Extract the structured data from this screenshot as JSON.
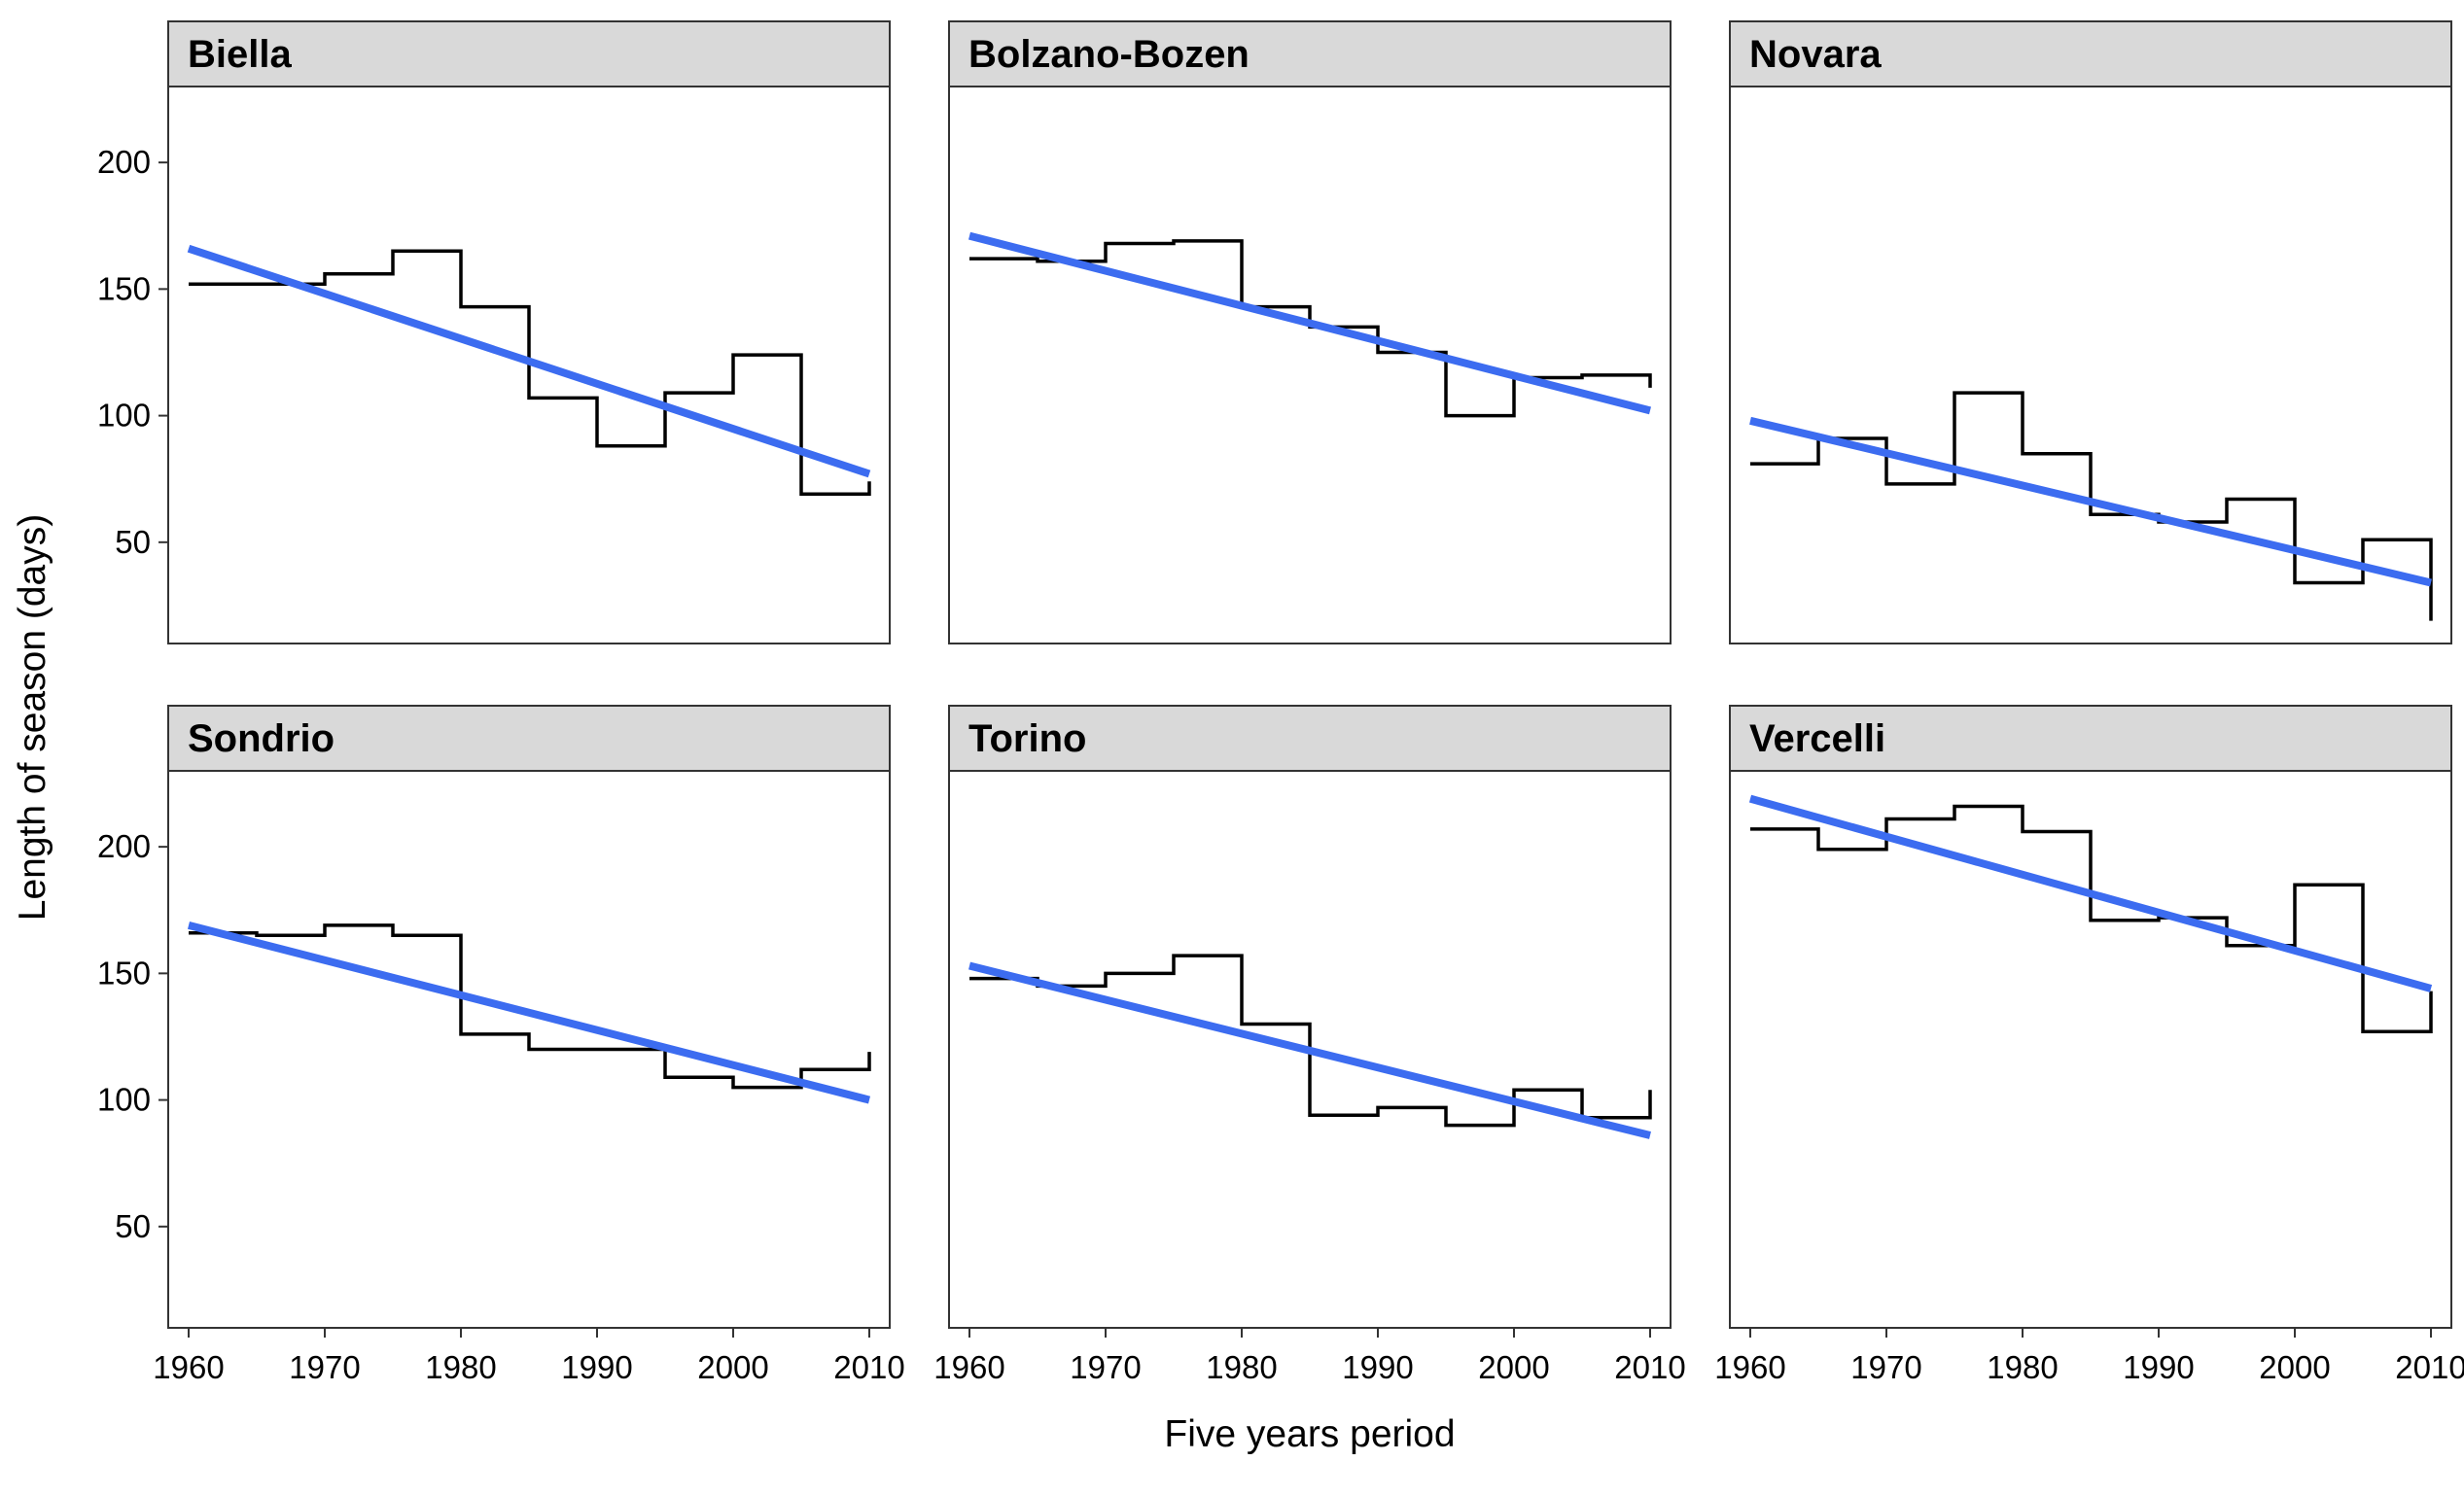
{
  "chart_data": {
    "type": "line",
    "layout": "faceted 2x3, shared axes",
    "xlabel": "Five years period",
    "ylabel": "Length of season (days)",
    "xlim": [
      1958.5,
      2011.5
    ],
    "ylim": [
      10,
      230
    ],
    "x_ticks": [
      1960,
      1970,
      1980,
      1990,
      2000,
      2010
    ],
    "y_ticks": [
      50,
      100,
      150,
      200
    ],
    "grid": false,
    "colors": {
      "step": "#000000",
      "trend": "#3c6cf0",
      "strip_fill": "#d9d9d9",
      "panel_border": "#333333"
    },
    "panels": [
      {
        "title": "Biella",
        "step": {
          "x": [
            1960,
            1965,
            1970,
            1975,
            1980,
            1985,
            1990,
            1995,
            2000,
            2005,
            2010
          ],
          "y": [
            152,
            152,
            156,
            165,
            143,
            107,
            88,
            109,
            124,
            69,
            74
          ]
        },
        "trend": {
          "x": [
            1960,
            2010
          ],
          "y": [
            166,
            77
          ]
        }
      },
      {
        "title": "Bolzano-Bozen",
        "step": {
          "x": [
            1960,
            1965,
            1970,
            1975,
            1980,
            1985,
            1990,
            1995,
            2000,
            2005,
            2010
          ],
          "y": [
            162,
            161,
            168,
            169,
            143,
            135,
            125,
            100,
            115,
            116,
            111
          ]
        },
        "trend": {
          "x": [
            1960,
            2010
          ],
          "y": [
            171,
            102
          ]
        }
      },
      {
        "title": "Novara",
        "step": {
          "x": [
            1960,
            1965,
            1970,
            1975,
            1980,
            1985,
            1990,
            1995,
            2000,
            2005,
            2010
          ],
          "y": [
            81,
            91,
            73,
            109,
            85,
            61,
            58,
            67,
            34,
            51,
            19
          ]
        },
        "trend": {
          "x": [
            1960,
            2010
          ],
          "y": [
            98,
            34
          ]
        }
      },
      {
        "title": "Sondrio",
        "step": {
          "x": [
            1960,
            1965,
            1970,
            1975,
            1980,
            1985,
            1990,
            1995,
            2000,
            2005,
            2010
          ],
          "y": [
            166,
            165,
            169,
            165,
            126,
            120,
            120,
            109,
            105,
            112,
            119
          ]
        },
        "trend": {
          "x": [
            1960,
            2010
          ],
          "y": [
            169,
            100
          ]
        }
      },
      {
        "title": "Torino",
        "step": {
          "x": [
            1960,
            1965,
            1970,
            1975,
            1980,
            1985,
            1990,
            1995,
            2000,
            2005,
            2010
          ],
          "y": [
            148,
            145,
            150,
            157,
            130,
            94,
            97,
            90,
            104,
            93,
            104
          ]
        },
        "trend": {
          "x": [
            1960,
            2010
          ],
          "y": [
            153,
            86
          ]
        }
      },
      {
        "title": "Vercelli",
        "step": {
          "x": [
            1960,
            1965,
            1970,
            1975,
            1980,
            1985,
            1990,
            1995,
            2000,
            2005,
            2010
          ],
          "y": [
            207,
            199,
            211,
            216,
            206,
            171,
            172,
            161,
            185,
            127,
            143
          ]
        },
        "trend": {
          "x": [
            1960,
            2010
          ],
          "y": [
            219,
            144
          ]
        }
      }
    ]
  }
}
